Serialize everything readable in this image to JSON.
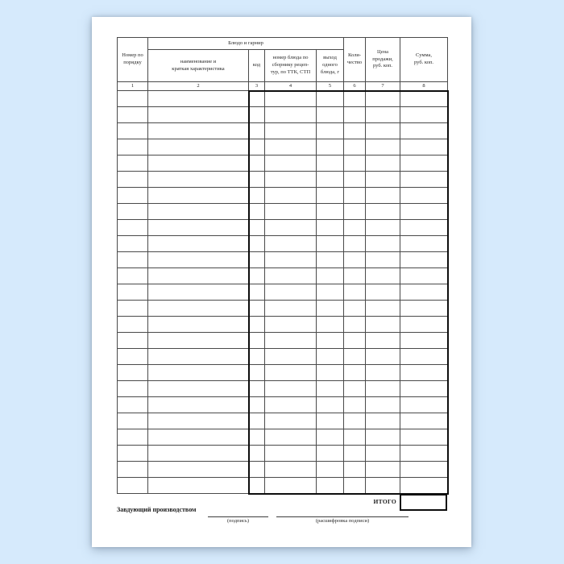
{
  "page": {
    "background_color": "#d6eafc",
    "paper_color": "#ffffff"
  },
  "table": {
    "group_header": "Блюдо и гарнир",
    "headers": {
      "col1": [
        "Номер по",
        "порядку"
      ],
      "col2": [
        "наименование и",
        "краткая характеристика"
      ],
      "col3": [
        "код"
      ],
      "col4": [
        "номер блюда по",
        "сборнику рецеп-",
        "тур, по ТТК, СТП"
      ],
      "col5": [
        "выход",
        "одного",
        "блюда, г"
      ],
      "col6": [
        "Коли-",
        "чество"
      ],
      "col7": [
        "Цена",
        "продажи,",
        "руб. коп."
      ],
      "col8": [
        "Сумма,",
        "руб. коп."
      ]
    },
    "column_numbers": [
      "1",
      "2",
      "3",
      "4",
      "5",
      "6",
      "7",
      "8"
    ],
    "empty_row_count": 25,
    "total_label": "ИТОГО"
  },
  "footer": {
    "manager_label": "Завдующий производством",
    "signature_caption": "(подпись)",
    "transcript_caption": "(расшифровка подписи)"
  }
}
